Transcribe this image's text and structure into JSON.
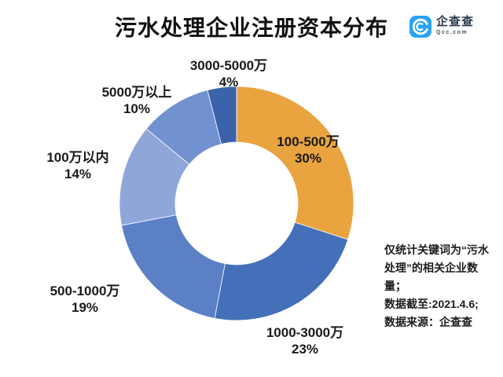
{
  "header": {
    "logo": {
      "name": "企查查",
      "domain": "Qcc.com",
      "brand_color": "#2aa2f5"
    }
  },
  "chart_data": {
    "type": "pie",
    "subtype": "donut",
    "title": "污水处理企业注册资本分布",
    "start_angle_deg": 0,
    "direction": "clockwise",
    "legend": "none",
    "labels_shown": true,
    "slices": [
      {
        "label": "100-500万",
        "value": 30,
        "percent_label": "30%",
        "color": "#e9a440"
      },
      {
        "label": "1000-3000万",
        "value": 23,
        "percent_label": "23%",
        "color": "#4470b9"
      },
      {
        "label": "500-1000万",
        "value": 19,
        "percent_label": "19%",
        "color": "#5c80c6"
      },
      {
        "label": "100万以内",
        "value": 14,
        "percent_label": "14%",
        "color": "#8fa6da"
      },
      {
        "label": "5000万以上",
        "value": 10,
        "percent_label": "10%",
        "color": "#7191d0"
      },
      {
        "label": "3000-5000万",
        "value": 4,
        "percent_label": "4%",
        "color": "#3b63ab"
      }
    ]
  },
  "footnote": {
    "lines": [
      "仅统计关键词为“污水处理”的相关企业数量；",
      "数据截至:2021.4.6;",
      "数据来源：企查查"
    ]
  }
}
